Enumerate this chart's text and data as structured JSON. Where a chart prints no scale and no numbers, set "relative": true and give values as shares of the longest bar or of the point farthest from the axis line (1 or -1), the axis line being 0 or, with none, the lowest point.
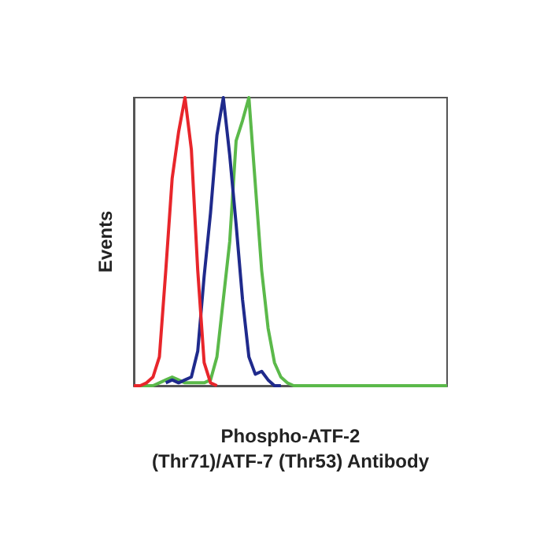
{
  "chart_data": {
    "type": "line",
    "xlabel": "Phospho-ATF-2\n(Thr71)/ATF-7 (Thr53) Antibody",
    "ylabel": "Events",
    "relative": true,
    "grid": false,
    "categories": [
      null,
      null,
      null,
      null,
      null,
      null,
      null,
      null,
      null,
      null,
      null,
      null,
      null,
      null,
      null,
      null,
      null,
      null,
      null,
      null,
      null,
      null,
      null,
      null,
      null,
      null,
      null,
      null,
      null,
      null,
      null,
      null,
      null,
      null,
      null,
      null,
      null,
      null,
      null,
      null,
      null,
      null,
      null,
      null,
      null,
      null,
      null,
      null,
      null,
      null
    ],
    "series": [
      {
        "color": "#5bb94a",
        "values": [
          0,
          0,
          0,
          0,
          0.01,
          0.02,
          0.03,
          0.02,
          0.01,
          0.01,
          0.01,
          0.01,
          0.02,
          0.1,
          0.3,
          0.5,
          0.85,
          0.92,
          1.0,
          0.7,
          0.4,
          0.2,
          0.08,
          0.03,
          0.01,
          0,
          0,
          0,
          0,
          0,
          0,
          0,
          0,
          0,
          0,
          0,
          0,
          0,
          0,
          0,
          0,
          0,
          0,
          0,
          0,
          0,
          0,
          0,
          0,
          0
        ]
      },
      {
        "color": "#1f2a8c",
        "values": [
          null,
          null,
          null,
          null,
          null,
          0.01,
          0.02,
          0.01,
          0.02,
          0.03,
          0.12,
          0.38,
          0.6,
          0.87,
          1.0,
          0.8,
          0.56,
          0.3,
          0.1,
          0.04,
          0.05,
          0.02,
          0,
          0,
          null,
          null,
          null,
          null,
          null,
          null,
          null,
          null,
          null,
          null,
          null,
          null,
          null,
          null,
          null,
          null,
          null,
          null,
          null,
          null,
          null,
          null,
          null,
          null,
          null,
          null
        ]
      },
      {
        "color": "#e8262b",
        "values": [
          0,
          0,
          0.01,
          0.03,
          0.1,
          0.4,
          0.72,
          0.88,
          1.0,
          0.82,
          0.4,
          0.08,
          0.01,
          0,
          null,
          null,
          null,
          null,
          null,
          null,
          null,
          null,
          null,
          null,
          null,
          null,
          null,
          null,
          null,
          null,
          null,
          null,
          null,
          null,
          null,
          null,
          null,
          null,
          null,
          null,
          null,
          null,
          null,
          null,
          null,
          null,
          null,
          null,
          null,
          null
        ]
      }
    ]
  }
}
